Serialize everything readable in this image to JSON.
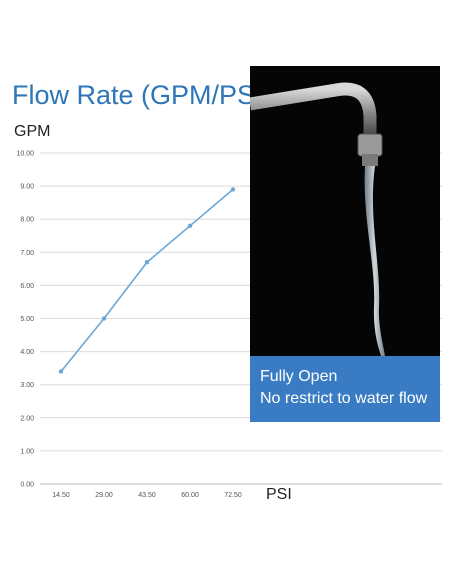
{
  "chart_data": {
    "type": "line",
    "title": "Flow Rate (GPM/PSI)",
    "ylabel": "GPM",
    "xlabel": "PSI",
    "categories": [
      "14.50",
      "29.00",
      "43.50",
      "60.00",
      "72.50"
    ],
    "series": [
      {
        "values": [
          3.4,
          5.0,
          6.7,
          7.8,
          8.9
        ]
      }
    ],
    "yticks": [
      "0.00",
      "1.00",
      "2.00",
      "3.00",
      "4.00",
      "5.00",
      "6.00",
      "7.00",
      "8.00",
      "9.00",
      "10.00"
    ],
    "ylim": [
      0,
      10
    ],
    "grid": true,
    "line_color": "#6aa6d6"
  },
  "photo": {
    "caption_line1": "Fully Open",
    "caption_line2": "No restrict to water flow",
    "caption_color": "#3a7cc3"
  }
}
